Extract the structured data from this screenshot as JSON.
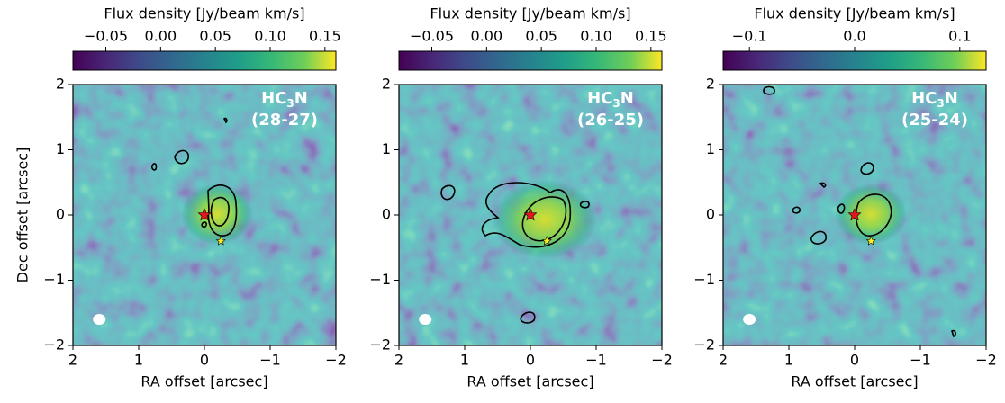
{
  "chart_data": [
    {
      "type": "map",
      "colorbar_label": "Flux density [Jy/beam km/s]",
      "clim": [
        -0.08,
        0.16
      ],
      "cticks": [
        {
          "value": -0.05,
          "label": "−0.05"
        },
        {
          "value": 0.0,
          "label": "0.00"
        },
        {
          "value": 0.05,
          "label": "0.05"
        },
        {
          "value": 0.1,
          "label": "0.10"
        },
        {
          "value": 0.15,
          "label": "0.15"
        }
      ],
      "xlabel": "RA offset [arcsec]",
      "ylabel": "Dec offset [arcsec]",
      "xlim": [
        2,
        -2
      ],
      "ylim": [
        -2,
        2
      ],
      "xticks": [
        2,
        1,
        0,
        {
          "value": -1,
          "label": "−1"
        },
        {
          "value": -2,
          "label": "−2"
        }
      ],
      "yticks": [
        {
          "value": -2,
          "label": "−2"
        },
        {
          "value": -1,
          "label": "−1"
        },
        0,
        1,
        2
      ],
      "annotation": {
        "main": "HC",
        "sub": "3",
        "end": "N",
        "line2": "(28-27)"
      },
      "points": {
        "x": [
          0,
          -0.25
        ],
        "y": [
          0,
          -0.4
        ],
        "colors": [
          "#e8141c",
          "#ffee22"
        ]
      }
    },
    {
      "type": "map",
      "colorbar_label": "Flux density [Jy/beam km/s]",
      "clim": [
        -0.08,
        0.16
      ],
      "cticks": [
        {
          "value": -0.05,
          "label": "−0.05"
        },
        {
          "value": 0.0,
          "label": "0.00"
        },
        {
          "value": 0.05,
          "label": "0.05"
        },
        {
          "value": 0.1,
          "label": "0.10"
        },
        {
          "value": 0.15,
          "label": "0.15"
        }
      ],
      "xlabel": "RA offset [arcsec]",
      "xlim": [
        2,
        -2
      ],
      "ylim": [
        -2,
        2
      ],
      "xticks": [
        2,
        1,
        0,
        {
          "value": -1,
          "label": "−1"
        },
        {
          "value": -2,
          "label": "−2"
        }
      ],
      "yticks": [
        {
          "value": -2,
          "label": "−2"
        },
        {
          "value": -1,
          "label": "−1"
        },
        0,
        1,
        2
      ],
      "annotation": {
        "main": "HC",
        "sub": "3",
        "end": "N",
        "line2": "(26-25)"
      },
      "points": {
        "x": [
          0,
          -0.25
        ],
        "y": [
          0,
          -0.4
        ],
        "colors": [
          "#e8141c",
          "#ffee22"
        ]
      }
    },
    {
      "type": "map",
      "colorbar_label": "Flux density [Jy/beam km/s]",
      "clim": [
        -0.125,
        0.125
      ],
      "cticks": [
        {
          "value": -0.1,
          "label": "−0.1"
        },
        {
          "value": 0.0,
          "label": "0.0"
        },
        {
          "value": 0.1,
          "label": "0.1"
        }
      ],
      "xlabel": "RA offset [arcsec]",
      "xlim": [
        2,
        -2
      ],
      "ylim": [
        -2,
        2
      ],
      "xticks": [
        2,
        1,
        0,
        {
          "value": -1,
          "label": "−1"
        },
        {
          "value": -2,
          "label": "−2"
        }
      ],
      "yticks": [
        {
          "value": -2,
          "label": "−2"
        },
        {
          "value": -1,
          "label": "−1"
        },
        0,
        1,
        2
      ],
      "annotation": {
        "main": "HC",
        "sub": "3",
        "end": "N",
        "line2": "(25-24)"
      },
      "points": {
        "x": [
          0,
          -0.25
        ],
        "y": [
          0,
          -0.4
        ],
        "colors": [
          "#e8141c",
          "#ffee22"
        ]
      }
    }
  ]
}
